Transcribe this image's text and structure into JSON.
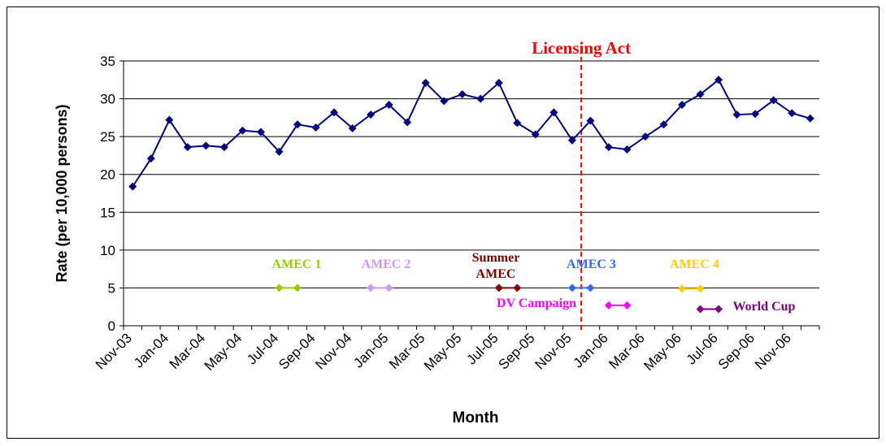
{
  "chart_data": {
    "type": "line",
    "x_label": "Month",
    "y_label": "Rate (per 10,000 persons)",
    "categories": [
      "Nov-03",
      null,
      "Jan-04",
      null,
      "Mar-04",
      null,
      "May-04",
      null,
      "Jul-04",
      null,
      "Sep-04",
      null,
      "Nov-04",
      null,
      "Jan-05",
      null,
      "Mar-05",
      null,
      "May-05",
      null,
      "Jul-05",
      null,
      "Sep-05",
      null,
      "Nov-05",
      null,
      "Jan-06",
      null,
      "Mar-06",
      null,
      "May-06",
      null,
      "Jul-06",
      null,
      "Sep-06",
      null,
      "Nov-06",
      null
    ],
    "ylim": [
      0,
      35
    ],
    "yticks": [
      0,
      5,
      10,
      15,
      20,
      25,
      30,
      35
    ],
    "grid": true,
    "series": [
      {
        "color": "#000080",
        "values": [
          18.4,
          22.1,
          27.2,
          23.6,
          23.8,
          23.6,
          25.8,
          25.6,
          23.0,
          26.6,
          26.2,
          28.2,
          26.1,
          27.9,
          29.2,
          26.9,
          32.1,
          29.7,
          30.6,
          30.0,
          32.1,
          26.8,
          25.3,
          28.2,
          24.5,
          27.1,
          23.6,
          23.3,
          25.0,
          26.6,
          29.2,
          30.6,
          32.5,
          27.9,
          28.0,
          29.8,
          28.1,
          27.4
        ]
      },
      {
        "name": "AMEC 1",
        "color": "#99cc00",
        "values": [
          null,
          null,
          null,
          null,
          null,
          null,
          null,
          null,
          5,
          5,
          null,
          null,
          null,
          null,
          null,
          null,
          null,
          null,
          null,
          null,
          null,
          null,
          null,
          null,
          null,
          null,
          null,
          null,
          null,
          null,
          null,
          null,
          null,
          null,
          null,
          null,
          null,
          null
        ]
      },
      {
        "name": "AMEC 2",
        "color": "#cc99ff",
        "values": [
          null,
          null,
          null,
          null,
          null,
          null,
          null,
          null,
          null,
          null,
          null,
          null,
          null,
          5,
          5,
          null,
          null,
          null,
          null,
          null,
          null,
          null,
          null,
          null,
          null,
          null,
          null,
          null,
          null,
          null,
          null,
          null,
          null,
          null,
          null,
          null,
          null,
          null
        ]
      },
      {
        "name": "Summer AMEC",
        "color": "#800000",
        "values": [
          null,
          null,
          null,
          null,
          null,
          null,
          null,
          null,
          null,
          null,
          null,
          null,
          null,
          null,
          null,
          null,
          null,
          null,
          null,
          null,
          5,
          5,
          null,
          null,
          null,
          null,
          null,
          null,
          null,
          null,
          null,
          null,
          null,
          null,
          null,
          null,
          null,
          null
        ]
      },
      {
        "name": "AMEC 3",
        "color": "#3366ff",
        "values": [
          null,
          null,
          null,
          null,
          null,
          null,
          null,
          null,
          null,
          null,
          null,
          null,
          null,
          null,
          null,
          null,
          null,
          null,
          null,
          null,
          null,
          null,
          null,
          null,
          5,
          5,
          null,
          null,
          null,
          null,
          null,
          null,
          null,
          null,
          null,
          null,
          null,
          null
        ]
      },
      {
        "name": "DV Campaign",
        "color": "#ff00ff",
        "values": [
          null,
          null,
          null,
          null,
          null,
          null,
          null,
          null,
          null,
          null,
          null,
          null,
          null,
          null,
          null,
          null,
          null,
          null,
          null,
          null,
          null,
          null,
          null,
          null,
          null,
          null,
          2.7,
          2.7,
          null,
          null,
          null,
          null,
          null,
          null,
          null,
          null,
          null,
          null
        ]
      },
      {
        "name": "AMEC 4",
        "color": "#ffcc00",
        "values": [
          null,
          null,
          null,
          null,
          null,
          null,
          null,
          null,
          null,
          null,
          null,
          null,
          null,
          null,
          null,
          null,
          null,
          null,
          null,
          null,
          null,
          null,
          null,
          null,
          null,
          null,
          null,
          null,
          null,
          null,
          4.9,
          4.9,
          null,
          null,
          null,
          null,
          null,
          null
        ]
      },
      {
        "name": "World Cup",
        "color": "#800080",
        "values": [
          null,
          null,
          null,
          null,
          null,
          null,
          null,
          null,
          null,
          null,
          null,
          null,
          null,
          null,
          null,
          null,
          null,
          null,
          null,
          null,
          null,
          null,
          null,
          null,
          null,
          null,
          null,
          null,
          null,
          null,
          null,
          2.2,
          2.2,
          null,
          null,
          null,
          null,
          null
        ]
      }
    ],
    "vline": {
      "label": "Licensing Act",
      "at": "Nov-05",
      "color": "#ff0000"
    }
  }
}
